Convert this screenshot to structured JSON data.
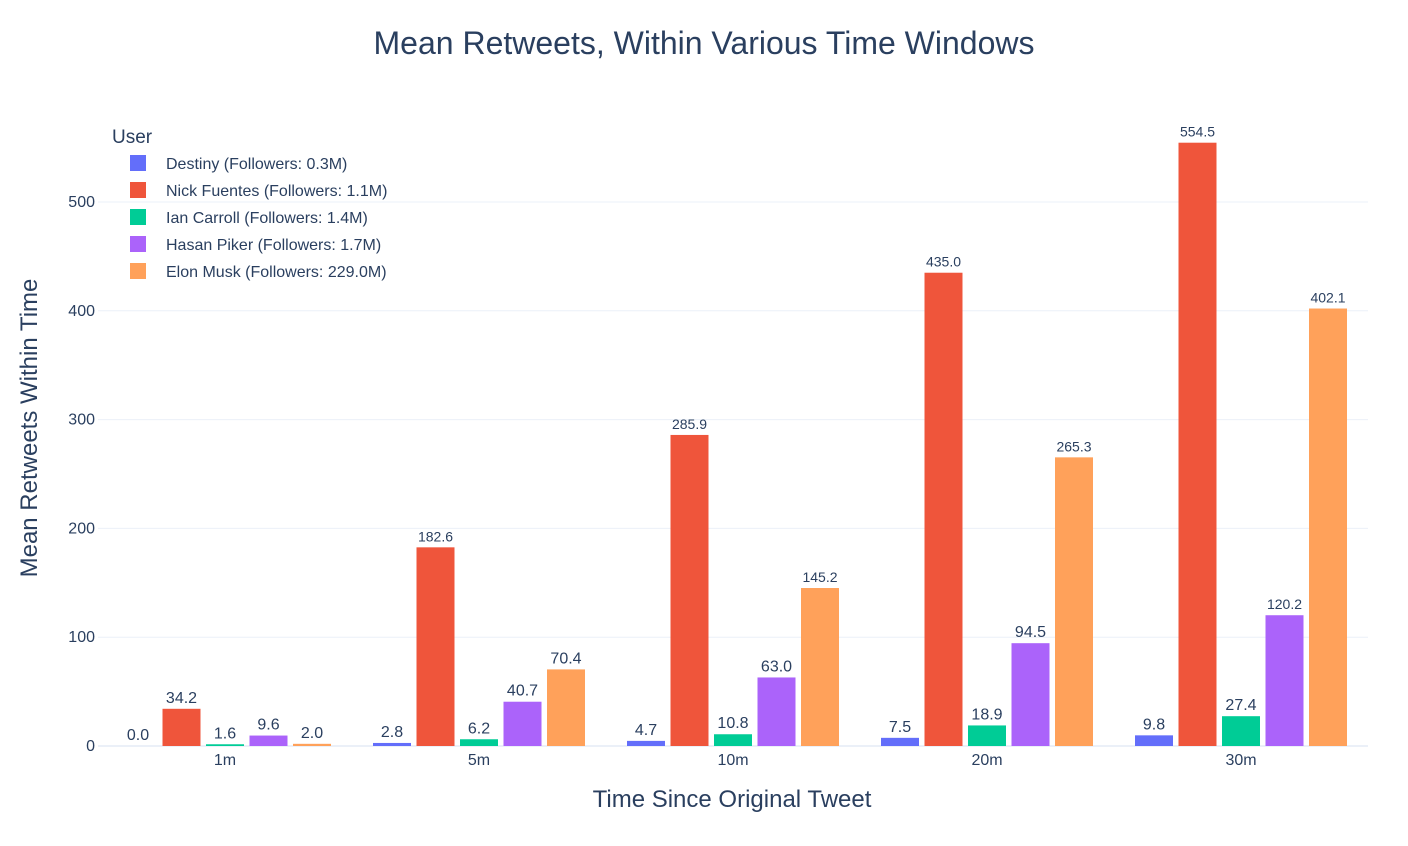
{
  "chart_data": {
    "type": "bar",
    "title": "Mean Retweets, Within Various Time Windows",
    "xlabel": "Time Since Original Tweet",
    "ylabel": "Mean Retweets Within Time",
    "categories": [
      "1m",
      "5m",
      "10m",
      "20m",
      "30m"
    ],
    "ylim": [
      0,
      580
    ],
    "yticks": [
      0,
      100,
      200,
      300,
      400,
      500
    ],
    "legend_title": "User",
    "legend_position": "top-left",
    "grid": true,
    "series": [
      {
        "name": "Destiny (Followers: 0.3M)",
        "color": "#636efa",
        "values": [
          0.0,
          2.8,
          4.7,
          7.5,
          9.8
        ],
        "labels": [
          "0.0",
          "2.8",
          "4.7",
          "7.5",
          "9.8"
        ]
      },
      {
        "name": "Nick Fuentes (Followers: 1.1M)",
        "color": "#ef553b",
        "values": [
          34.2,
          182.6,
          285.9,
          435.0,
          554.5
        ],
        "labels": [
          "34.2",
          "182.6",
          "285.9",
          "435.0",
          "554.5"
        ]
      },
      {
        "name": "Ian Carroll (Followers: 1.4M)",
        "color": "#00cc96",
        "values": [
          1.6,
          6.2,
          10.8,
          18.9,
          27.4
        ],
        "labels": [
          "1.6",
          "6.2",
          "10.8",
          "18.9",
          "27.4"
        ]
      },
      {
        "name": "Hasan Piker (Followers: 1.7M)",
        "color": "#ab63fa",
        "values": [
          9.6,
          40.7,
          63.0,
          94.5,
          120.2
        ],
        "labels": [
          "9.6",
          "40.7",
          "63.0",
          "94.5",
          "120.2"
        ]
      },
      {
        "name": "Elon Musk (Followers: 229.0M)",
        "color": "#ffa15a",
        "values": [
          2.0,
          70.4,
          145.2,
          265.3,
          402.1
        ],
        "labels": [
          "2.0",
          "70.4",
          "145.2",
          "265.3",
          "402.1"
        ]
      }
    ]
  }
}
